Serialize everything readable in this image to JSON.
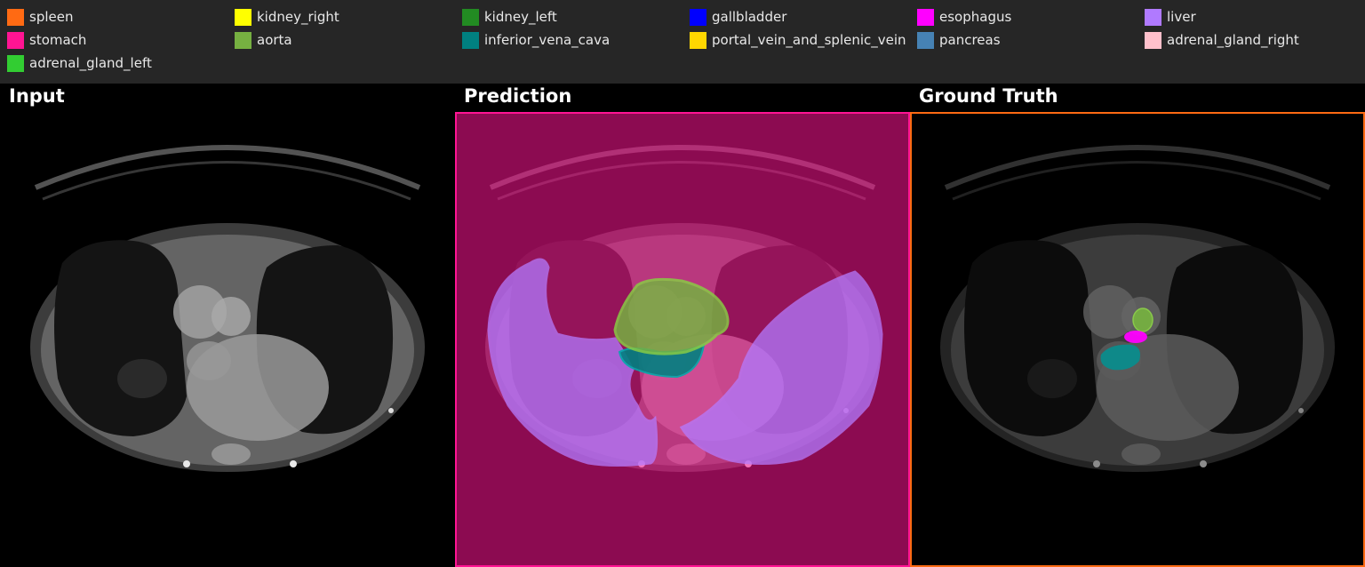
{
  "legend": {
    "items": [
      {
        "label": "spleen",
        "color": "#ff6a13"
      },
      {
        "label": "kidney_right",
        "color": "#ffff00"
      },
      {
        "label": "kidney_left",
        "color": "#228b22"
      },
      {
        "label": "gallbladder",
        "color": "#0000ff"
      },
      {
        "label": "esophagus",
        "color": "#ff00ff"
      },
      {
        "label": "liver",
        "color": "#b07aff"
      },
      {
        "label": "stomach",
        "color": "#ff1493"
      },
      {
        "label": "aorta",
        "color": "#76b041"
      },
      {
        "label": "inferior_vena_cava",
        "color": "#008080"
      },
      {
        "label": "portal_vein_and_splenic_vein",
        "color": "#ffd700"
      },
      {
        "label": "pancreas",
        "color": "#4682b4"
      },
      {
        "label": "adrenal_gland_right",
        "color": "#ffc0cb"
      },
      {
        "label": "adrenal_gland_left",
        "color": "#32cd32"
      }
    ]
  },
  "panels": {
    "input": {
      "title": "Input"
    },
    "prediction": {
      "title": "Prediction",
      "frame_color": "#ff1493"
    },
    "ground_truth": {
      "title": "Ground Truth",
      "frame_color": "#ff6a13"
    }
  }
}
